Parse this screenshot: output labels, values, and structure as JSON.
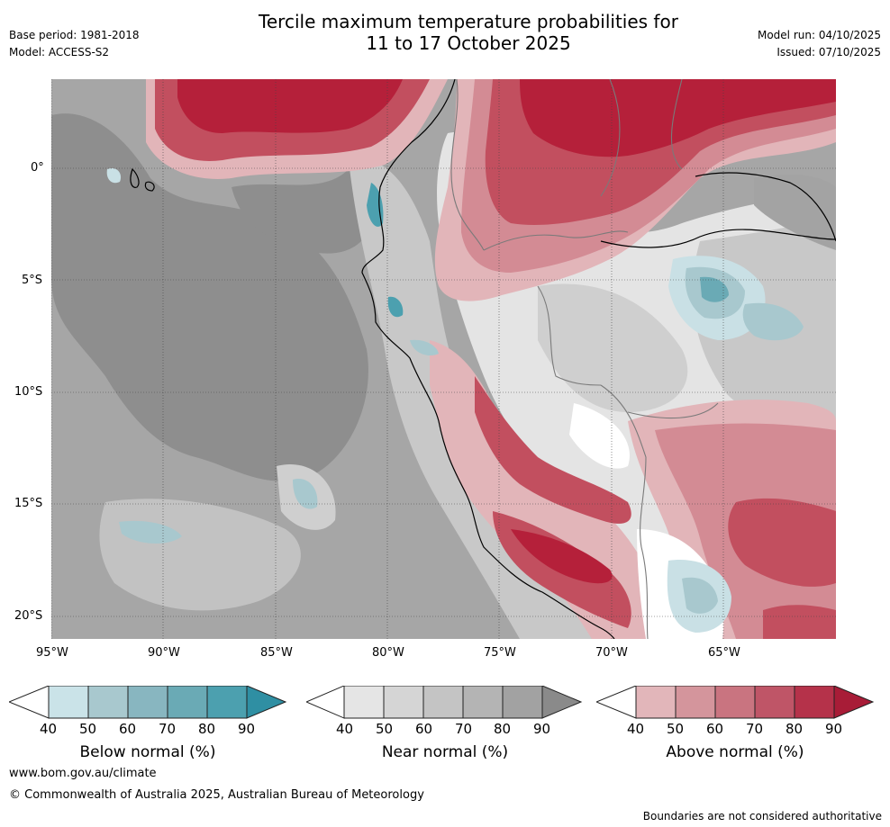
{
  "header": {
    "title_line1": "Tercile maximum temperature probabilities for",
    "title_line2": "11 to 17 October 2025",
    "base_period": "Base period: 1981-2018",
    "model": "Model: ACCESS-S2",
    "model_run": "Model run: 04/10/2025",
    "issued": "Issued: 07/10/2025"
  },
  "map": {
    "lat_ticks": [
      "0°",
      "5°S",
      "10°S",
      "15°S",
      "20°S"
    ],
    "lon_ticks": [
      "95°W",
      "90°W",
      "85°W",
      "80°W",
      "75°W",
      "70°W",
      "65°W"
    ],
    "colors": {
      "ocean_grey": "#a6a6a6",
      "ocean_dark": "#8c8c8c",
      "land_light": "#e4e4e4",
      "red_dark": "#b5203a",
      "red_mid": "#c24f5f",
      "red_light": "#d38b94",
      "red_pale": "#e2b5b9",
      "blue_mid": "#86b6c0",
      "blue_light": "#c9e0e5"
    }
  },
  "colorbars": [
    {
      "label": "Below normal (%)",
      "ticks": [
        "40",
        "50",
        "60",
        "70",
        "80",
        "90"
      ],
      "colors": [
        "#ffffff",
        "#cae3e8",
        "#a8c8ce",
        "#88b6c0",
        "#6aaab5",
        "#4ca0af",
        "#2f8fa3"
      ]
    },
    {
      "label": "Near normal (%)",
      "ticks": [
        "40",
        "50",
        "60",
        "70",
        "80",
        "90"
      ],
      "colors": [
        "#ffffff",
        "#e5e5e5",
        "#d5d5d5",
        "#c4c4c4",
        "#b4b4b4",
        "#a2a2a2",
        "#8a8a8a"
      ]
    },
    {
      "label": "Above normal (%)",
      "ticks": [
        "40",
        "50",
        "60",
        "70",
        "80",
        "90"
      ],
      "colors": [
        "#ffffff",
        "#e2b6ba",
        "#d4959c",
        "#c97480",
        "#bf5567",
        "#b5324a",
        "#a81c37"
      ]
    }
  ],
  "footer": {
    "url": "www.bom.gov.au/climate",
    "copyright": "© Commonwealth of Australia 2025, Australian Bureau of Meteorology",
    "disclaimer": "Boundaries are not considered authoritative"
  }
}
